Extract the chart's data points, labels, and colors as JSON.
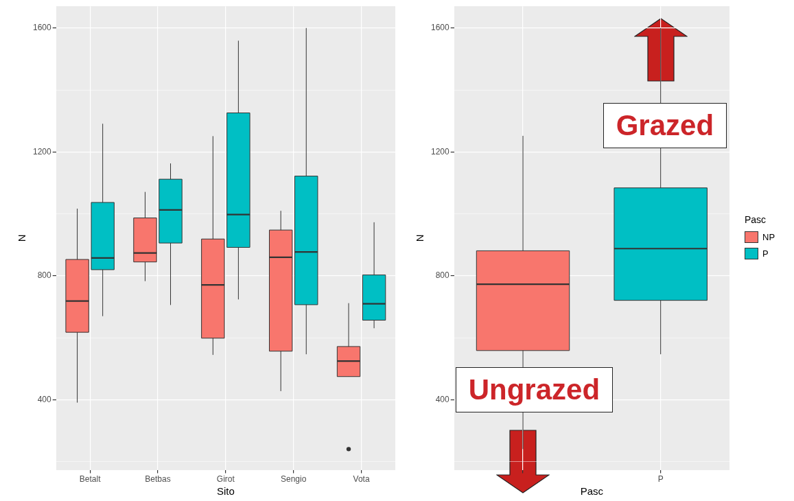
{
  "chart_data": [
    {
      "type": "box",
      "categories": [
        "Betalt",
        "Betbas",
        "Girot",
        "Sengio",
        "Vota"
      ],
      "xlabel": "Sito",
      "ylabel": "N",
      "ylim": [
        174,
        1670
      ],
      "yticks": [
        {
          "value": 200,
          "label": null
        },
        400,
        {
          "value": 600,
          "label": null
        },
        800,
        {
          "value": 1000,
          "label": null
        },
        1200,
        {
          "value": 1400,
          "label": null
        },
        1600
      ],
      "grid": true,
      "legend": false,
      "series": [
        {
          "color": "#f8766d",
          "boxes": [
            {
              "low": 391,
              "q1": 618,
              "median": 719,
              "q3": 853,
              "high": 1017
            },
            {
              "low": 783,
              "q1": 845,
              "median": 874,
              "q3": 987,
              "high": 1071
            },
            {
              "low": 545,
              "q1": 599,
              "median": 771,
              "q3": 919,
              "high": 1251
            },
            {
              "low": 428,
              "q1": 557,
              "median": 860,
              "q3": 948,
              "high": 1010
            },
            {
              "low": 475,
              "q1": 475,
              "median": 525,
              "q3": 572,
              "high": 712,
              "outliers": [
                241
              ]
            }
          ]
        },
        {
          "color": "#00bfc4",
          "boxes": [
            {
              "low": 670,
              "q1": 820,
              "median": 858,
              "q3": 1037,
              "high": 1291
            },
            {
              "low": 706,
              "q1": 906,
              "median": 1013,
              "q3": 1112,
              "high": 1163
            },
            {
              "low": 724,
              "q1": 892,
              "median": 998,
              "q3": 1326,
              "high": 1559
            },
            {
              "low": 547,
              "q1": 707,
              "median": 877,
              "q3": 1122,
              "high": 1600
            },
            {
              "low": 631,
              "q1": 657,
              "median": 710,
              "q3": 803,
              "high": 973
            }
          ]
        }
      ]
    },
    {
      "type": "box",
      "categories": [
        null,
        "P"
      ],
      "xlabel": "Pasc",
      "ylabel": "N",
      "ylim": [
        174,
        1670
      ],
      "yticks": [
        {
          "value": 200,
          "label": null
        },
        400,
        {
          "value": 600,
          "label": null
        },
        800,
        {
          "value": 1000,
          "label": null
        },
        1200,
        {
          "value": 1400,
          "label": null
        },
        1600
      ],
      "grid": true,
      "legend": "right",
      "legend_title": "Pasc",
      "annotations": [
        "Grazed",
        "Ungrazed"
      ],
      "series": [
        {
          "name": "NP",
          "color": "#f8766d",
          "boxes": [
            {
              "low": 241,
              "q1": 559,
              "median": 773,
              "q3": 881,
              "high": 1252
            },
            null
          ]
        },
        {
          "name": "P",
          "color": "#00bfc4",
          "boxes": [
            null,
            {
              "low": 547,
              "q1": 721,
              "median": 888,
              "q3": 1084,
              "high": 1600
            }
          ]
        }
      ]
    }
  ]
}
